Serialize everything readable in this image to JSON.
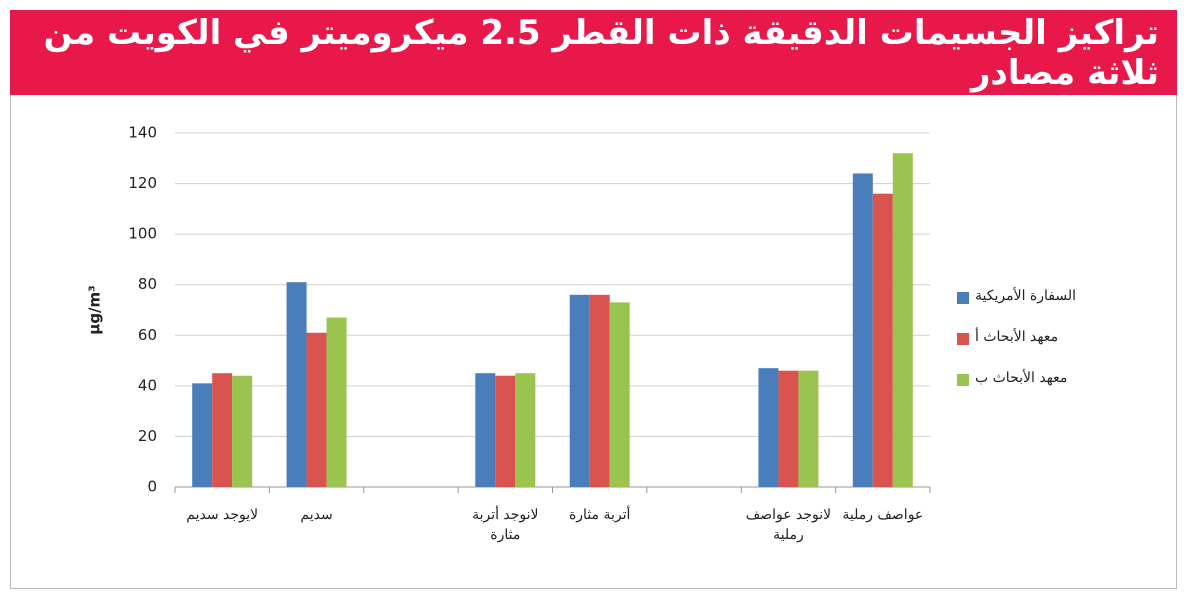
{
  "title": "تراكيز الجسيمات الدقيقة ذات القطر 2.5 ميكروميتر في الكويت من ثلاثة مصادر",
  "chart_data": {
    "type": "bar",
    "ylabel": "µg/m³",
    "categories": [
      "لايوجد سديم",
      "سديم",
      null,
      "لانوجد أتربة مثارة",
      "أتربة مثارة",
      null,
      "لانوجد عواصف رملية",
      "عواصف رملية"
    ],
    "series": [
      {
        "name": "السفارة الأمريكية",
        "color": "#4a7ebb",
        "values": [
          41,
          81,
          null,
          45,
          76,
          null,
          47,
          124
        ]
      },
      {
        "name": "معهد الأبحاث أ",
        "color": "#d9534f",
        "values": [
          45,
          61,
          null,
          44,
          76,
          null,
          46,
          116
        ]
      },
      {
        "name": "معهد الأبحاث ب",
        "color": "#9bc34f",
        "values": [
          44,
          67,
          null,
          45,
          73,
          null,
          46,
          132
        ]
      }
    ],
    "ylim": [
      0,
      140
    ],
    "yticks": [
      0,
      20,
      40,
      60,
      80,
      100,
      120,
      140
    ],
    "grid": true,
    "legend": "right"
  }
}
